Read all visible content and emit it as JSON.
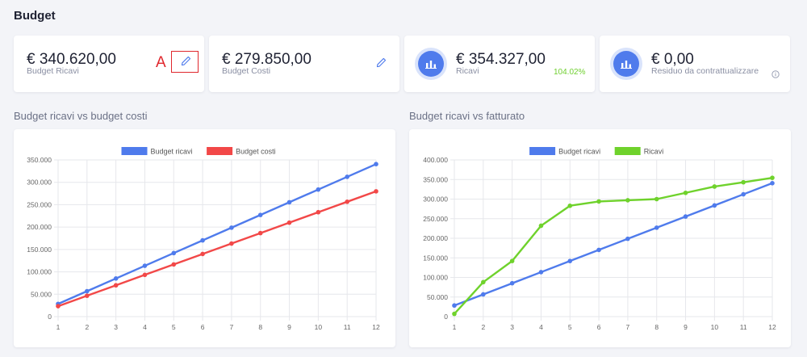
{
  "page": {
    "title": "Budget"
  },
  "kpis": [
    {
      "value": "€ 340.620,00",
      "label": "Budget Ricavi"
    },
    {
      "value": "€ 279.850,00",
      "label": "Budget Costi"
    },
    {
      "value": "€ 354.327,00",
      "label": "Ricavi",
      "percent": "104.02%"
    },
    {
      "value": "€ 0,00",
      "label": "Residuo da contrattualizzare"
    }
  ],
  "annotation": {
    "letter": "A"
  },
  "colors": {
    "blue": "#4f7bec",
    "red": "#f24848",
    "green": "#6fd22c",
    "accent_green_text": "#6fcf2f"
  },
  "icons": {
    "edit": "pencil-icon",
    "chart": "bar-chart-icon",
    "info": "info-circle-icon"
  },
  "sections": {
    "chart1_title": "Budget ricavi vs budget costi",
    "chart2_title": "Budget ricavi vs fatturato"
  },
  "chart_data": [
    {
      "type": "line",
      "x": [
        1,
        2,
        3,
        4,
        5,
        6,
        7,
        8,
        9,
        10,
        11,
        12
      ],
      "series": [
        {
          "name": "Budget ricavi",
          "color": "#4f7bec",
          "values": [
            28385,
            56770,
            85155,
            113540,
            141925,
            170310,
            198695,
            227080,
            255465,
            283850,
            312235,
            340620
          ]
        },
        {
          "name": "Budget costi",
          "color": "#f24848",
          "values": [
            23321,
            46642,
            69963,
            93284,
            116605,
            139925,
            163246,
            186567,
            209888,
            233209,
            256530,
            279850
          ]
        }
      ],
      "ylim": [
        0,
        350000
      ],
      "yticks": [
        "0",
        "50.000",
        "100.000",
        "150.000",
        "200.000",
        "250.000",
        "300.000",
        "350.000"
      ],
      "ytick_values": [
        0,
        50000,
        100000,
        150000,
        200000,
        250000,
        300000,
        350000
      ],
      "xticks": [
        "1",
        "2",
        "3",
        "4",
        "5",
        "6",
        "7",
        "8",
        "9",
        "10",
        "11",
        "12"
      ],
      "legend": "top",
      "grid": true
    },
    {
      "type": "line",
      "x": [
        1,
        2,
        3,
        4,
        5,
        6,
        7,
        8,
        9,
        10,
        11,
        12
      ],
      "series": [
        {
          "name": "Budget ricavi",
          "color": "#4f7bec",
          "values": [
            28385,
            56770,
            85155,
            113540,
            141925,
            170310,
            198695,
            227080,
            255465,
            283850,
            312235,
            340620
          ]
        },
        {
          "name": "Ricavi",
          "color": "#6fd22c",
          "values": [
            7000,
            88000,
            142000,
            232000,
            283000,
            294000,
            297000,
            300000,
            316000,
            332000,
            343000,
            354327
          ]
        }
      ],
      "ylim": [
        0,
        400000
      ],
      "yticks": [
        "0",
        "50.000",
        "100.000",
        "150.000",
        "200.000",
        "250.000",
        "300.000",
        "350.000",
        "400.000"
      ],
      "ytick_values": [
        0,
        50000,
        100000,
        150000,
        200000,
        250000,
        300000,
        350000,
        400000
      ],
      "xticks": [
        "1",
        "2",
        "3",
        "4",
        "5",
        "6",
        "7",
        "8",
        "9",
        "10",
        "11",
        "12"
      ],
      "legend": "top",
      "grid": true
    }
  ]
}
